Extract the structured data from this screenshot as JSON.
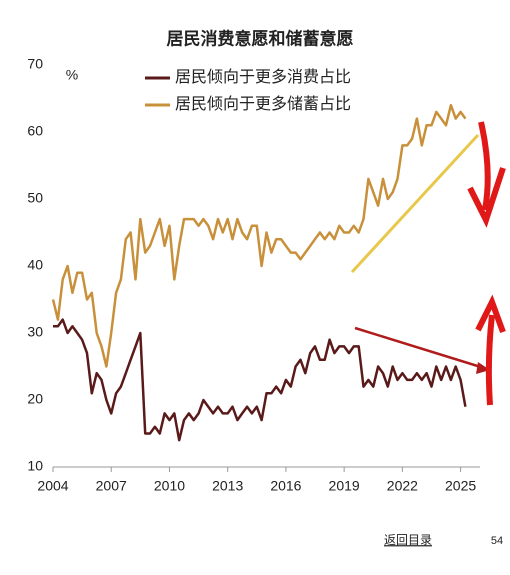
{
  "chart_data": {
    "type": "line",
    "title": "居民消费意愿和储蓄意愿",
    "y_label": "%",
    "x": [
      2004,
      2004.25,
      2004.5,
      2004.75,
      2005,
      2005.25,
      2005.5,
      2005.75,
      2006,
      2006.25,
      2006.5,
      2006.75,
      2007,
      2007.25,
      2007.5,
      2007.75,
      2008,
      2008.25,
      2008.5,
      2008.75,
      2009,
      2009.25,
      2009.5,
      2009.75,
      2010,
      2010.25,
      2010.5,
      2010.75,
      2011,
      2011.25,
      2011.5,
      2011.75,
      2012,
      2012.25,
      2012.5,
      2012.75,
      2013,
      2013.25,
      2013.5,
      2013.75,
      2014,
      2014.25,
      2014.5,
      2014.75,
      2015,
      2015.25,
      2015.5,
      2015.75,
      2016,
      2016.25,
      2016.5,
      2016.75,
      2017,
      2017.25,
      2017.5,
      2017.75,
      2018,
      2018.25,
      2018.5,
      2018.75,
      2019,
      2019.25,
      2019.5,
      2019.75,
      2020,
      2020.25,
      2020.5,
      2020.75,
      2021,
      2021.25,
      2021.5,
      2021.75,
      2022,
      2022.25,
      2022.5,
      2022.75,
      2023,
      2023.25,
      2023.5,
      2023.75,
      2024,
      2024.25,
      2024.5,
      2024.75,
      2025,
      2025.25
    ],
    "series": [
      {
        "name": "居民倾向于更多消费占比",
        "color": "#5a1a1a",
        "values": [
          31,
          31,
          32,
          30,
          31,
          30,
          29,
          27,
          21,
          24,
          23,
          20,
          18,
          21,
          22,
          24,
          26,
          28,
          30,
          15,
          15,
          16,
          15,
          18,
          17,
          18,
          14,
          17,
          18,
          17,
          18,
          20,
          19,
          18,
          19,
          18,
          18,
          19,
          17,
          18,
          19,
          18,
          19,
          17,
          21,
          21,
          22,
          21,
          23,
          22,
          25,
          26,
          24,
          27,
          28,
          26,
          26,
          29,
          27,
          28,
          28,
          27,
          28,
          28,
          22,
          23,
          22,
          25,
          24,
          22,
          25,
          23,
          24,
          23,
          23,
          24,
          23,
          24,
          22,
          25,
          23,
          25,
          23,
          25,
          23,
          19
        ]
      },
      {
        "name": "居民倾向于更多储蓄占比",
        "color": "#c8903a",
        "values": [
          35,
          32,
          38,
          40,
          36,
          39,
          39,
          35,
          36,
          30,
          28,
          25,
          30,
          36,
          38,
          44,
          45,
          38,
          47,
          42,
          43,
          45,
          47,
          43,
          46,
          38,
          43,
          47,
          47,
          47,
          46,
          47,
          46,
          44,
          47,
          45,
          47,
          44,
          47,
          45,
          44,
          46,
          46,
          40,
          45,
          42,
          44,
          44,
          43,
          42,
          42,
          41,
          42,
          43,
          44,
          45,
          44,
          45,
          44,
          46,
          45,
          45,
          46,
          45,
          47,
          53,
          51,
          49,
          53,
          50,
          51,
          53,
          58,
          58,
          59,
          62,
          58,
          61,
          61,
          63,
          62,
          61,
          64,
          62,
          63,
          62
        ]
      }
    ],
    "xlim": [
      2004,
      2026
    ],
    "xticks": [
      2004,
      2007,
      2010,
      2013,
      2016,
      2019,
      2022,
      2025
    ],
    "ylim": [
      10,
      70
    ],
    "yticks": [
      10,
      20,
      30,
      40,
      50,
      60,
      70
    ],
    "grid": false,
    "legend": "top"
  },
  "footer": {
    "link": "返回目录",
    "page": 54
  }
}
